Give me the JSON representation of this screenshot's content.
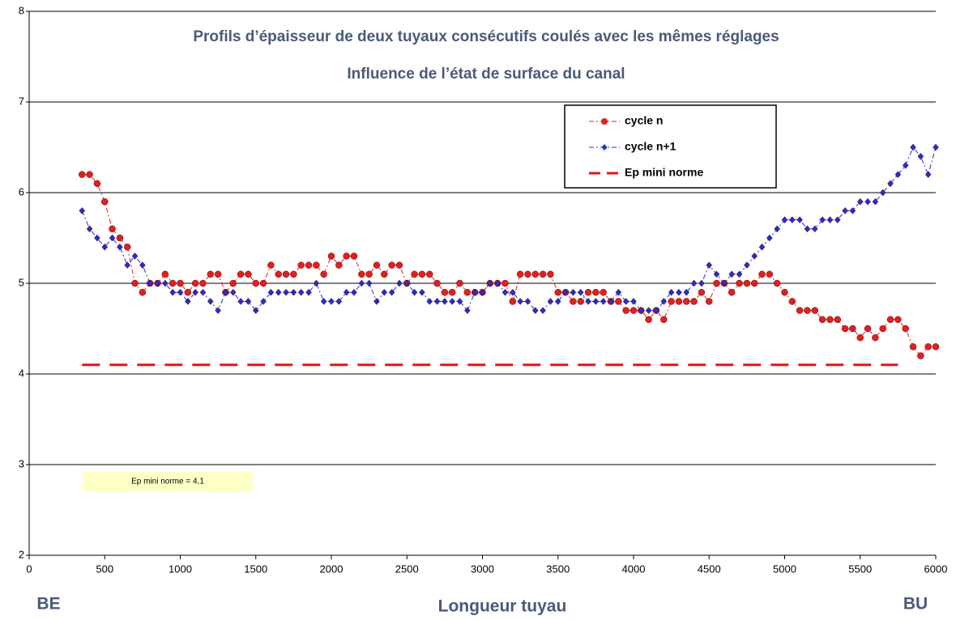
{
  "chart_data": {
    "type": "line",
    "title": "Profils d’épaisseur de deux tuyaux consécutifs coulés avec les mêmes réglages",
    "subtitle": "Influence de l’état de surface du canal",
    "x_label": "Longueur tuyau",
    "x_left_label": "BE",
    "x_right_label": "BU",
    "annotation": "Ep mini norme = 4,1",
    "x": [
      350,
      400,
      450,
      500,
      550,
      600,
      650,
      700,
      750,
      800,
      850,
      900,
      950,
      1000,
      1050,
      1100,
      1150,
      1200,
      1250,
      1300,
      1350,
      1400,
      1450,
      1500,
      1550,
      1600,
      1650,
      1700,
      1750,
      1800,
      1850,
      1900,
      1950,
      2000,
      2050,
      2100,
      2150,
      2200,
      2250,
      2300,
      2350,
      2400,
      2450,
      2500,
      2550,
      2600,
      2650,
      2700,
      2750,
      2800,
      2850,
      2900,
      2950,
      3000,
      3050,
      3100,
      3150,
      3200,
      3250,
      3300,
      3350,
      3400,
      3450,
      3500,
      3550,
      3600,
      3650,
      3700,
      3750,
      3800,
      3850,
      3900,
      3950,
      4000,
      4050,
      4100,
      4150,
      4200,
      4250,
      4300,
      4350,
      4400,
      4450,
      4500,
      4550,
      4600,
      4650,
      4700,
      4750,
      4800,
      4850,
      4900,
      4950,
      5000,
      5050,
      5100,
      5150,
      5200,
      5250,
      5300,
      5350,
      5400,
      5450,
      5500,
      5550,
      5600,
      5650,
      5700,
      5750,
      5800,
      5850,
      5900,
      5950,
      6000
    ],
    "series": [
      {
        "name": "cycle n",
        "color": "#e02020",
        "marker": "circle",
        "values": [
          6.2,
          6.2,
          6.1,
          5.9,
          5.6,
          5.5,
          5.4,
          5.0,
          4.9,
          5.0,
          5.0,
          5.1,
          5.0,
          5.0,
          4.9,
          5.0,
          5.0,
          5.1,
          5.1,
          4.9,
          5.0,
          5.1,
          5.1,
          5.0,
          5.0,
          5.2,
          5.1,
          5.1,
          5.1,
          5.2,
          5.2,
          5.2,
          5.1,
          5.3,
          5.2,
          5.3,
          5.3,
          5.1,
          5.1,
          5.2,
          5.1,
          5.2,
          5.2,
          5.0,
          5.1,
          5.1,
          5.1,
          5.0,
          4.9,
          4.9,
          5.0,
          4.9,
          4.9,
          4.9,
          5.0,
          5.0,
          5.0,
          4.8,
          5.1,
          5.1,
          5.1,
          5.1,
          5.1,
          4.9,
          4.9,
          4.8,
          4.8,
          4.9,
          4.9,
          4.9,
          4.8,
          4.8,
          4.7,
          4.7,
          4.7,
          4.6,
          4.7,
          4.6,
          4.8,
          4.8,
          4.8,
          4.8,
          4.9,
          4.8,
          5.0,
          5.0,
          4.9,
          5.0,
          5.0,
          5.0,
          5.1,
          5.1,
          5.0,
          4.9,
          4.8,
          4.7,
          4.7,
          4.7,
          4.6,
          4.6,
          4.6,
          4.5,
          4.5,
          4.4,
          4.5,
          4.4,
          4.5,
          4.6,
          4.6,
          4.5,
          4.3,
          4.2,
          4.3,
          4.3
        ]
      },
      {
        "name": "cycle n+1",
        "color": "#2030d0",
        "marker": "diamond",
        "values": [
          5.8,
          5.6,
          5.5,
          5.4,
          5.5,
          5.4,
          5.2,
          5.3,
          5.2,
          5.0,
          5.0,
          5.0,
          4.9,
          4.9,
          4.8,
          4.9,
          4.9,
          4.8,
          4.7,
          4.9,
          4.9,
          4.8,
          4.8,
          4.7,
          4.8,
          4.9,
          4.9,
          4.9,
          4.9,
          4.9,
          4.9,
          5.0,
          4.8,
          4.8,
          4.8,
          4.9,
          4.9,
          5.0,
          5.0,
          4.8,
          4.9,
          4.9,
          5.0,
          5.0,
          4.9,
          4.9,
          4.8,
          4.8,
          4.8,
          4.8,
          4.8,
          4.7,
          4.9,
          4.9,
          5.0,
          5.0,
          4.9,
          4.9,
          4.8,
          4.8,
          4.7,
          4.7,
          4.8,
          4.8,
          4.9,
          4.9,
          4.9,
          4.8,
          4.8,
          4.8,
          4.8,
          4.9,
          4.8,
          4.8,
          4.7,
          4.7,
          4.7,
          4.8,
          4.9,
          4.9,
          4.9,
          5.0,
          5.0,
          5.2,
          5.1,
          5.0,
          5.1,
          5.1,
          5.2,
          5.3,
          5.4,
          5.5,
          5.6,
          5.7,
          5.7,
          5.7,
          5.6,
          5.6,
          5.7,
          5.7,
          5.7,
          5.8,
          5.8,
          5.9,
          5.9,
          5.9,
          6.0,
          6.1,
          6.2,
          6.3,
          6.5,
          6.4,
          6.2,
          6.5
        ]
      },
      {
        "name": "Ep mini norme",
        "color": "#ee1111",
        "marker": "none",
        "x": [
          350,
          5750
        ],
        "values": [
          4.1,
          4.1
        ]
      }
    ],
    "xlim": [
      0,
      6000
    ],
    "xticks": [
      0,
      500,
      1000,
      1500,
      2000,
      2500,
      3000,
      3500,
      4000,
      4500,
      5000,
      5500,
      6000
    ],
    "ylim": [
      2,
      8
    ],
    "yticks": [
      2,
      3,
      4,
      5,
      6,
      7,
      8
    ],
    "grid": true,
    "legend": "upper right"
  }
}
